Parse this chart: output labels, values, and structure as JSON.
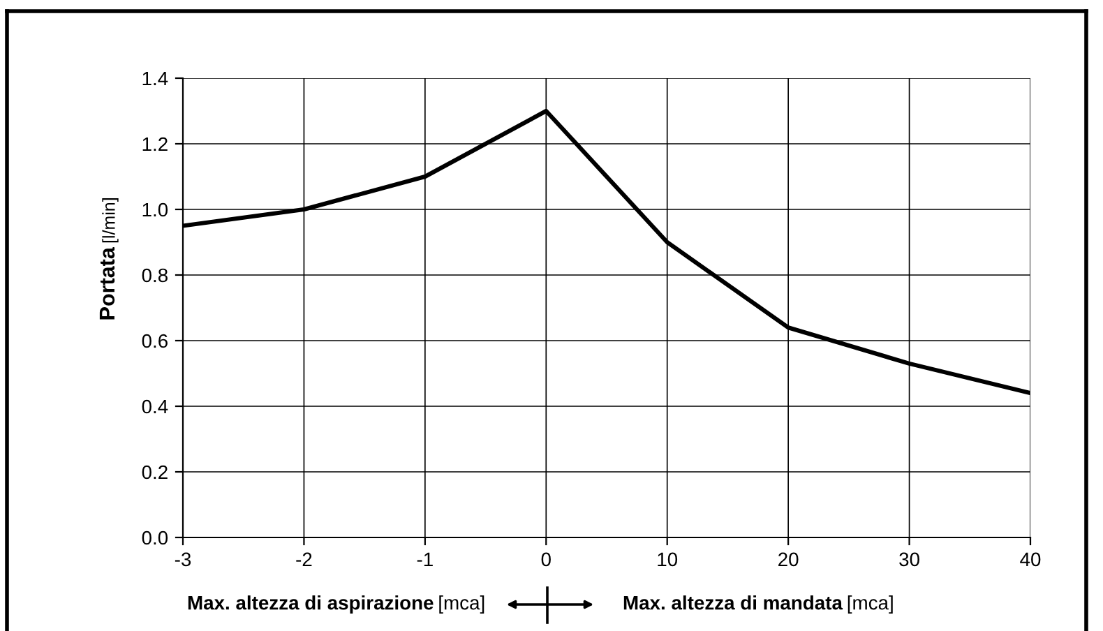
{
  "chart_data": {
    "type": "line",
    "categories": [
      "-3",
      "-2",
      "-1",
      "0",
      "10",
      "20",
      "30",
      "40"
    ],
    "series": [
      {
        "color": "#000000",
        "values": [
          0.95,
          1.0,
          1.1,
          1.3,
          0.9,
          0.64,
          0.53,
          0.44
        ]
      }
    ],
    "ylabel": "Portata [l/min]",
    "annotations": [
      "Max. altezza di aspirazione [mca]",
      "Max. altezza di mandata [mca]"
    ],
    "ylim": [
      0,
      1.4
    ],
    "yticks": [
      {
        "value": 0,
        "label": "0.0"
      },
      0.2,
      0.4,
      0.6,
      0.8,
      {
        "value": 1,
        "label": "1.0"
      },
      1.2,
      1.4
    ],
    "grid": true,
    "marker": "none",
    "line_style": "solid",
    "legend": false
  }
}
